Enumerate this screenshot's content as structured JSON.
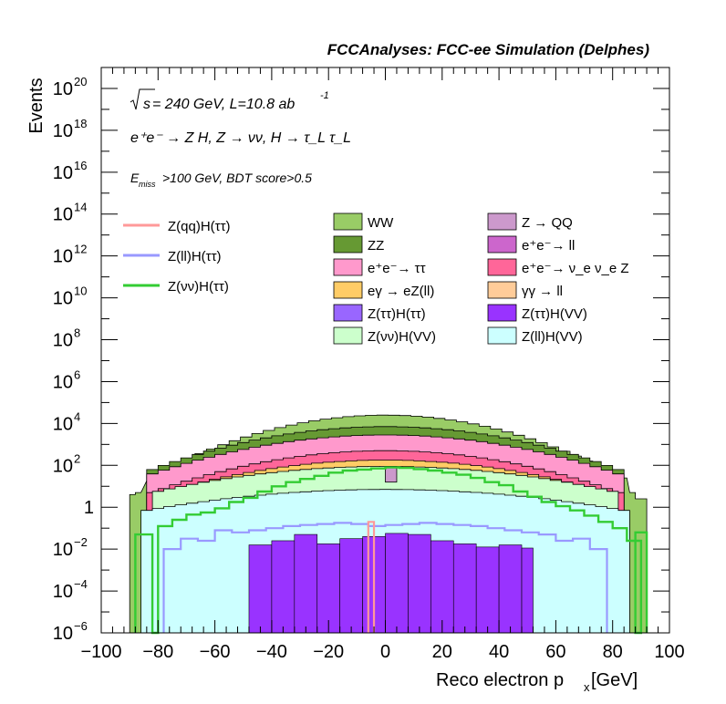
{
  "chart_data": {
    "type": "histogram",
    "title": "FCCAnalyses: FCC-ee Simulation (Delphes)",
    "annotations": {
      "energy_prefix": "s",
      "energy_rest": " = 240 GeV, L=10.8 ab",
      "lumi_exp": "-1",
      "process": "e⁺e⁻ → Z H, Z → νν, H → τ_L τ_L",
      "cut_prefix": "E",
      "cut_sub": "miss",
      "cut_rest": ">100 GeV, BDT score>0.5"
    },
    "xlabel": "Reco electron p",
    "xlabel_sub": "x",
    "xlabel_unit": " [GeV]",
    "ylabel": "Events",
    "xlim": [
      -100,
      100
    ],
    "ylim": [
      1e-06,
      1e+21
    ],
    "log_y": true,
    "grid": false,
    "x_ticks": [
      "−100",
      "−80",
      "−60",
      "−40",
      "−20",
      "0",
      "20",
      "40",
      "60",
      "80",
      "100"
    ],
    "y_ticks": [
      {
        "base": "10",
        "exp": "−6"
      },
      {
        "base": "10",
        "exp": "−4"
      },
      {
        "base": "10",
        "exp": "−2"
      },
      {
        "base": "1",
        "exp": ""
      },
      {
        "base": "10",
        "exp": "2"
      },
      {
        "base": "10",
        "exp": "4"
      },
      {
        "base": "10",
        "exp": "6"
      },
      {
        "base": "10",
        "exp": "8"
      },
      {
        "base": "10",
        "exp": "10"
      },
      {
        "base": "10",
        "exp": "12"
      },
      {
        "base": "10",
        "exp": "14"
      },
      {
        "base": "10",
        "exp": "16"
      },
      {
        "base": "10",
        "exp": "18"
      },
      {
        "base": "10",
        "exp": "20"
      }
    ],
    "stack_totals_log10": [
      {
        "series": "WW",
        "edge": 83,
        "min": 1.4,
        "max": 4.4,
        "color": "#99cc66"
      },
      {
        "series": "ZZ",
        "edge": 84,
        "min": 1.7,
        "max": 3.85,
        "color": "#669933"
      },
      {
        "series": "e⁺e⁻ → ττ",
        "edge": 84,
        "min": 1.5,
        "max": 3.45,
        "color": "#ff99cc"
      },
      {
        "series": "e⁺e⁻ → ν_e ν_e Z",
        "edge": 84,
        "min": 0.6,
        "max": 2.7,
        "color": "#ff6699"
      },
      {
        "series": "eγ → eZ(ll)",
        "edge": 70,
        "min": 1.0,
        "max": 2.25,
        "color": "#ffcc66"
      },
      {
        "series": "Z(νν)H(VV)",
        "edge": 82,
        "min": 0.7,
        "max": 1.95,
        "color": "#ccffcc"
      },
      {
        "series": "Z(ll)H(VV)",
        "edge": 86,
        "min": -0.2,
        "max": 0.85,
        "color": "#ccffff"
      }
    ],
    "stack_bottom_bins": [
      {
        "x0": -90,
        "x1": -88,
        "log10": 0.6
      },
      {
        "x0": -88,
        "x1": -86,
        "log10": 0.7
      },
      {
        "x0": 86,
        "x1": 88,
        "log10": 0.7
      },
      {
        "x0": 88,
        "x1": 92,
        "log10": 0.4
      }
    ],
    "series_legend": [
      {
        "name": "WW",
        "color": "#99cc66"
      },
      {
        "name": "Z → QQ",
        "color": "#cc99cc"
      },
      {
        "name": "ZZ",
        "color": "#669933"
      },
      {
        "name": "e⁺e⁻→ ll",
        "color": "#cc66cc"
      },
      {
        "name": "e⁺e⁻→ ττ",
        "color": "#ff99cc"
      },
      {
        "name": "e⁺e⁻→ ν_e ν_e Z",
        "color": "#ff6699"
      },
      {
        "name": "eγ → eZ(ll)",
        "color": "#ffcc66"
      },
      {
        "name": "γγ → ll",
        "color": "#ffcc99"
      },
      {
        "name": "Z(ττ)H(ττ)",
        "color": "#9966ff"
      },
      {
        "name": "Z(ττ)H(VV)",
        "color": "#9933ff"
      },
      {
        "name": "Z(νν)H(VV)",
        "color": "#ccffcc"
      },
      {
        "name": "Z(ll)H(VV)",
        "color": "#ccffff"
      }
    ],
    "signal_legend": [
      {
        "name": "Z(qq)H(ττ)",
        "color": "#ff9999"
      },
      {
        "name": "Z(ll)H(ττ)",
        "color": "#9999ff"
      },
      {
        "name": "Z(νν)H(ττ)",
        "color": "#33cc33"
      }
    ],
    "z_qq_bin": {
      "x0": 0,
      "x1": 4,
      "log10_low": 1.2,
      "log10_high": 1.95
    },
    "purple_bins_log10": [
      {
        "x0": -48,
        "x1": -40,
        "v": -1.8
      },
      {
        "x0": -40,
        "x1": -32,
        "v": -1.6
      },
      {
        "x0": -32,
        "x1": -24,
        "v": -1.3
      },
      {
        "x0": -24,
        "x1": -16,
        "v": -1.75
      },
      {
        "x0": -16,
        "x1": -8,
        "v": -1.5
      },
      {
        "x0": -8,
        "x1": 0,
        "v": -1.4
      },
      {
        "x0": 0,
        "x1": 8,
        "v": -1.25
      },
      {
        "x0": 8,
        "x1": 16,
        "v": -1.3
      },
      {
        "x0": 16,
        "x1": 24,
        "v": -1.6
      },
      {
        "x0": 24,
        "x1": 32,
        "v": -1.75
      },
      {
        "x0": 32,
        "x1": 40,
        "v": -1.9
      },
      {
        "x0": 40,
        "x1": 48,
        "v": -1.8
      },
      {
        "x0": 48,
        "x1": 52,
        "v": -1.95
      }
    ],
    "signal_z_ll_H_tautau": {
      "x": [
        -78,
        -72,
        -66,
        -60,
        -54,
        -48,
        -42,
        -36,
        -30,
        -24,
        -18,
        -12,
        -6,
        0,
        6,
        12,
        18,
        24,
        30,
        36,
        42,
        48,
        54,
        60,
        66,
        72
      ],
      "log10": [
        -2.0,
        -1.5,
        -1.6,
        -1.1,
        -1.2,
        -1.1,
        -1.0,
        -0.9,
        -0.85,
        -0.8,
        -0.75,
        -0.8,
        -0.9,
        -0.85,
        -0.8,
        -0.75,
        -0.8,
        -0.85,
        -0.9,
        -1.0,
        -1.1,
        -1.2,
        -1.3,
        -1.6,
        -1.5,
        -2.0
      ]
    },
    "signal_z_nunu_H_tautau": {
      "x": [
        -80,
        -75,
        -70,
        -65,
        -60,
        -55,
        -50,
        -45,
        -40,
        -35,
        -30,
        -25,
        -20,
        -15,
        -10,
        -5,
        0,
        5,
        10,
        15,
        20,
        25,
        30,
        35,
        40,
        45,
        50,
        55,
        60,
        65,
        70,
        75,
        80,
        85
      ],
      "log10": [
        -0.9,
        -0.6,
        -0.35,
        -0.25,
        -0.05,
        0.25,
        0.45,
        0.75,
        1.0,
        1.2,
        1.35,
        1.5,
        1.65,
        1.75,
        1.8,
        1.85,
        1.9,
        1.88,
        1.82,
        1.75,
        1.65,
        1.55,
        1.4,
        1.2,
        1.05,
        0.75,
        0.5,
        0.25,
        0.05,
        -0.15,
        -0.4,
        -0.7,
        -1.0,
        -1.6
      ]
    },
    "signal_z_qq_H_tautau": {
      "x0": -6,
      "x1": -4,
      "log10": -0.7
    }
  }
}
